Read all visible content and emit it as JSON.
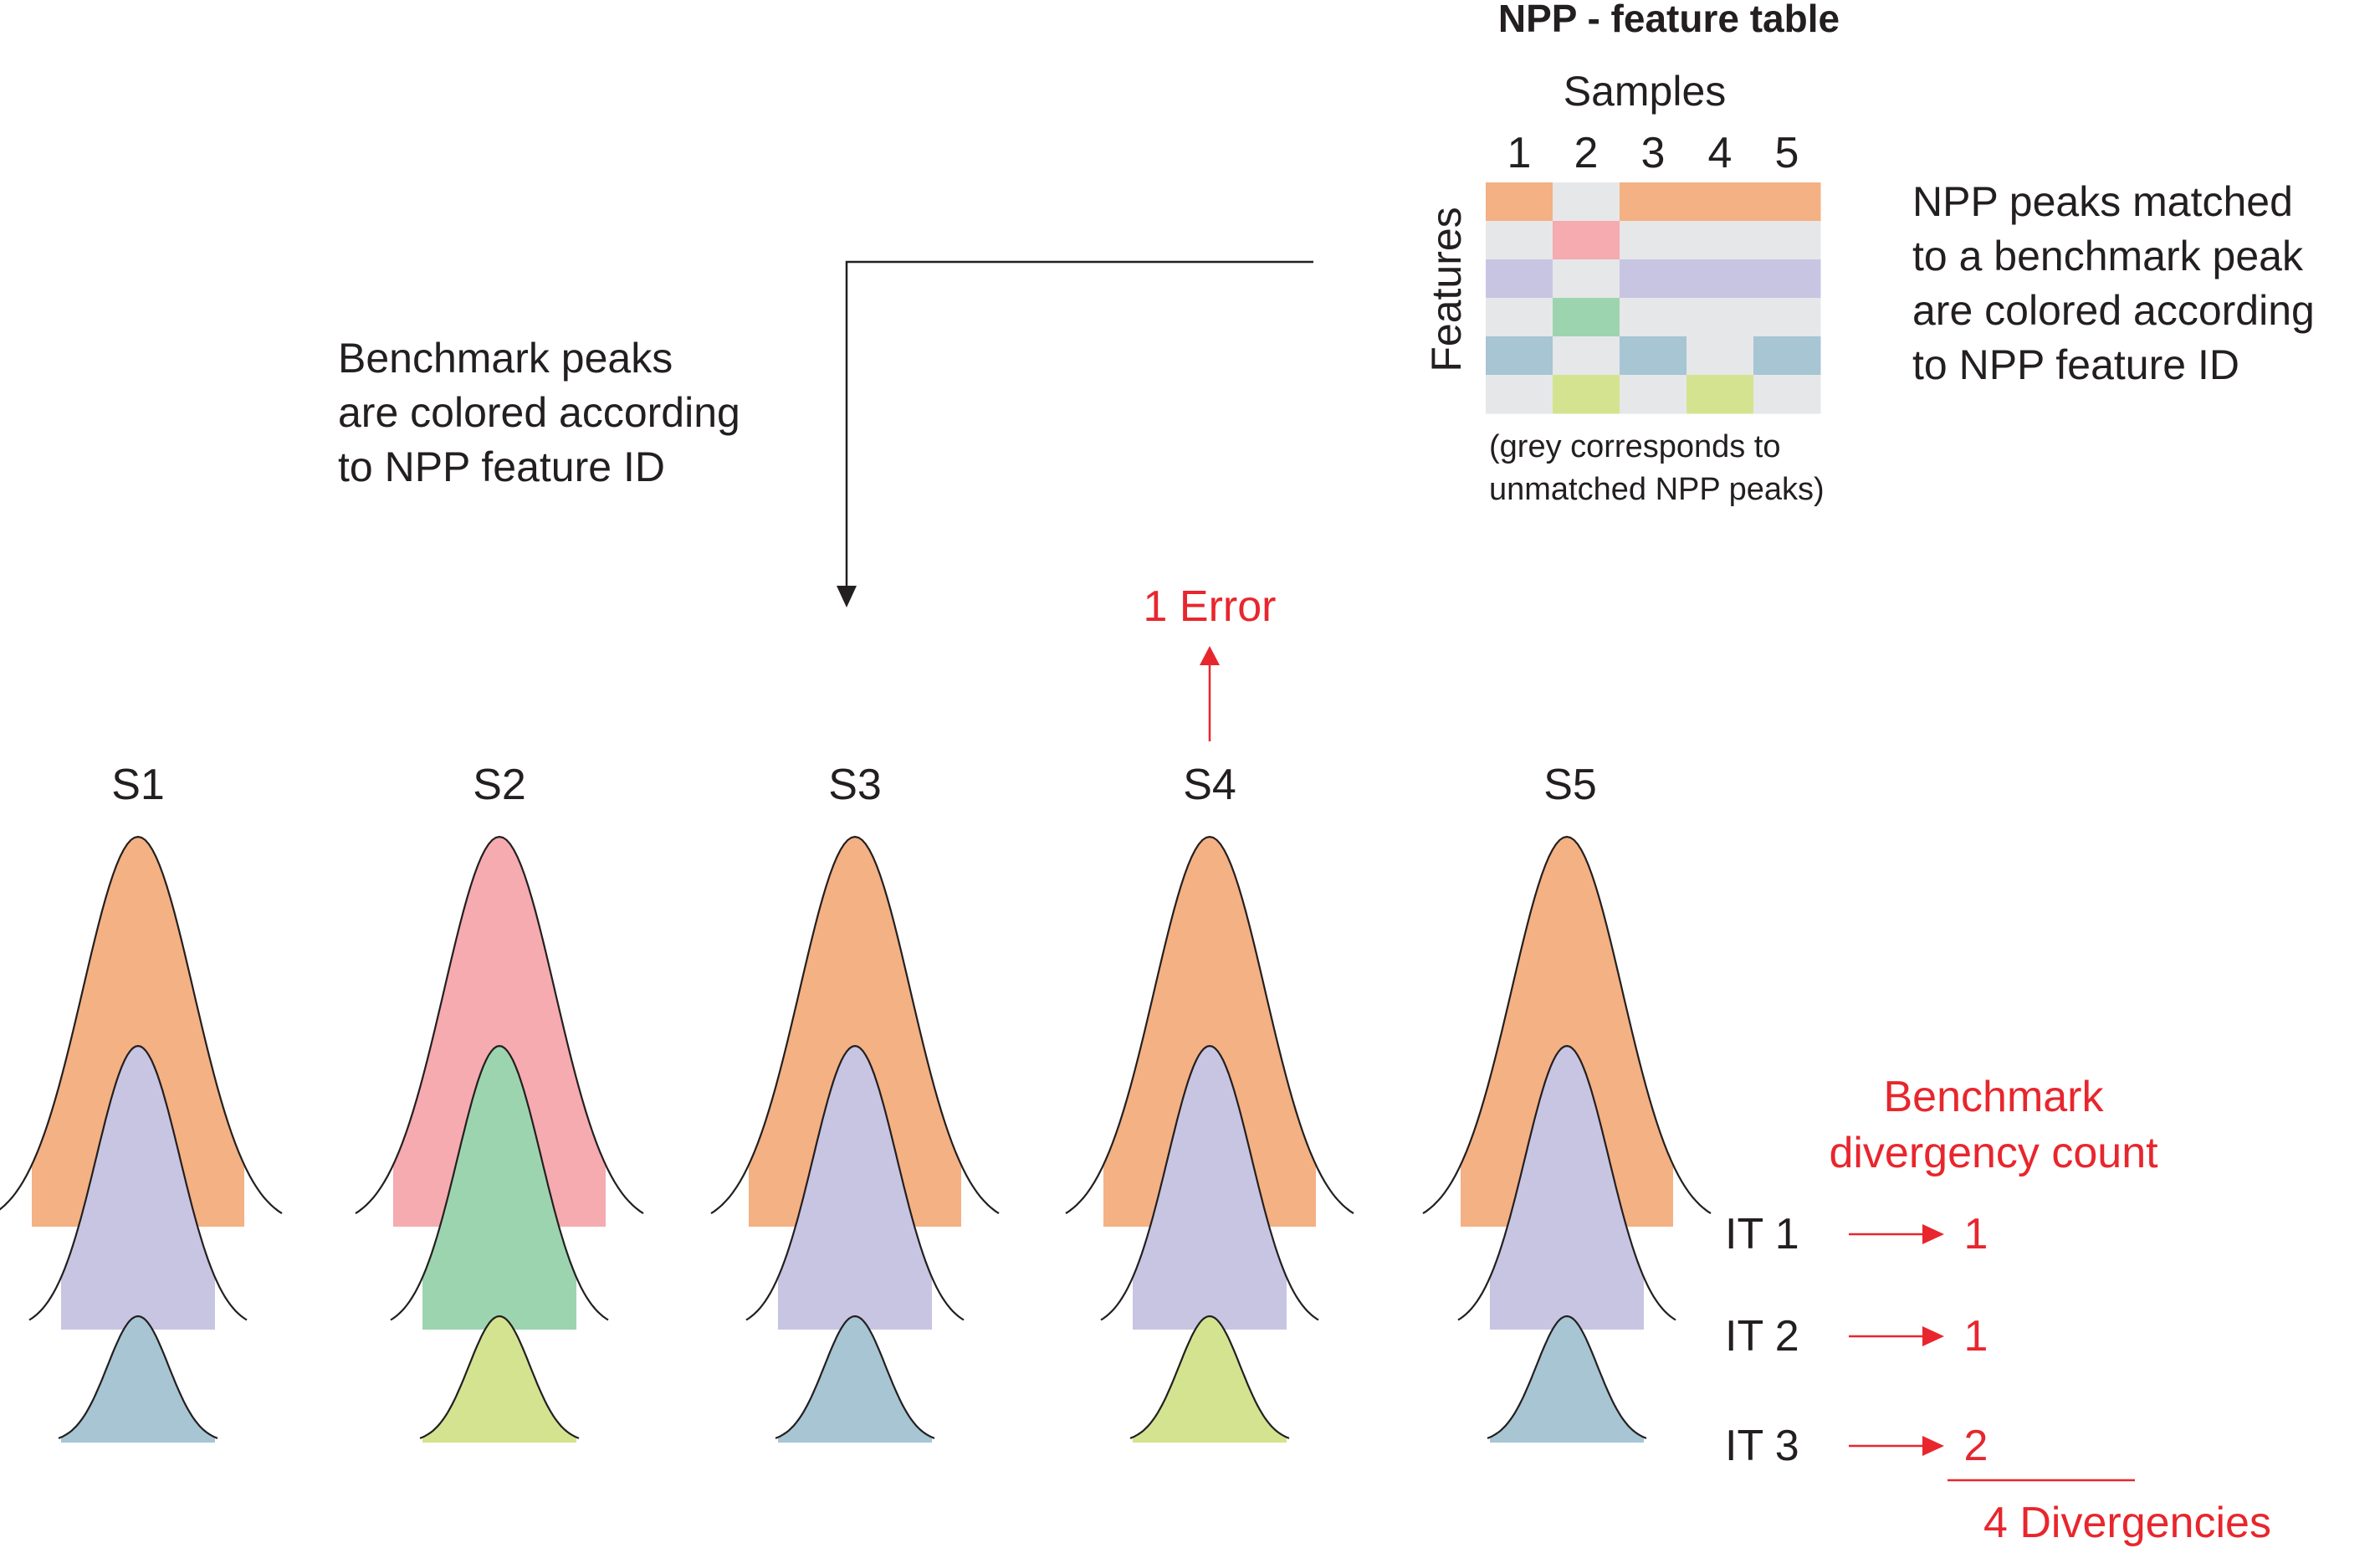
{
  "table": {
    "title": "NPP - feature table",
    "samples_label": "Samples",
    "features_label": "Features",
    "sample_numbers": [
      "1",
      "2",
      "3",
      "4",
      "5"
    ],
    "note_lines": [
      "(grey corresponds to",
      "unmatched NPP peaks)"
    ],
    "grid": [
      [
        "orange",
        "grey",
        "orange",
        "orange",
        "orange"
      ],
      [
        "grey",
        "pink",
        "grey",
        "grey",
        "grey"
      ],
      [
        "purple",
        "grey",
        "purple",
        "purple",
        "purple"
      ],
      [
        "grey",
        "green",
        "grey",
        "grey",
        "grey"
      ],
      [
        "blue",
        "grey",
        "blue",
        "grey",
        "blue"
      ],
      [
        "grey",
        "yellow",
        "grey",
        "yellow",
        "grey"
      ]
    ]
  },
  "right_note_lines": [
    "NPP peaks matched",
    "to a benchmark peak",
    "are colored according",
    "to NPP feature ID"
  ],
  "left_note_lines": [
    "Benchmark peaks",
    "are colored according",
    "to NPP feature ID"
  ],
  "error_label": "1 Error",
  "samples": [
    {
      "label": "S1",
      "peaks": [
        "orange",
        "purple",
        "blue"
      ]
    },
    {
      "label": "S2",
      "peaks": [
        "pink",
        "green",
        "yellow"
      ]
    },
    {
      "label": "S3",
      "peaks": [
        "orange",
        "purple",
        "blue"
      ]
    },
    {
      "label": "S4",
      "peaks": [
        "orange",
        "purple",
        "yellow"
      ]
    },
    {
      "label": "S5",
      "peaks": [
        "orange",
        "purple",
        "blue"
      ]
    }
  ],
  "divergency": {
    "title_lines": [
      "Benchmark",
      "divergency count"
    ],
    "rows": [
      {
        "label": "IT 1",
        "count": "1"
      },
      {
        "label": "IT 2",
        "count": "1"
      },
      {
        "label": "IT 3",
        "count": "2"
      }
    ],
    "total": "4 Divergencies"
  },
  "colors": {
    "orange": "#f4b183",
    "pink": "#f5abb0",
    "purple": "#c8c5e3",
    "green": "#9dd4b0",
    "blue": "#a7c5d3",
    "yellow": "#d4e38f",
    "grey": "#e6e7e8",
    "red": "#e8262d",
    "dark": "#231f20"
  }
}
